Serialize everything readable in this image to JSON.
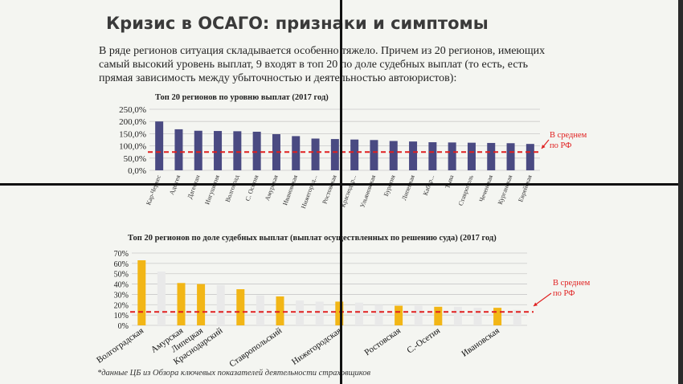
{
  "title": "Кризис в ОСАГО: признаки и симптомы",
  "intro": "В ряде регионов ситуация складывается особенно тяжело. Причем из 20 регионов, имеющих самый высокий уровень выплат, 9 входят в топ 20 по доле судебных выплат (то есть, есть прямая зависимость между убыточностью и деятельностью автоюристов):",
  "footnote": "*данные ЦБ из Обзора ключевых показателей деятельности страховщиков",
  "colors": {
    "bar1": "#4a4a82",
    "bar2": "#f2b616",
    "avg": "#e02020",
    "ghost": "#e9e9e9"
  },
  "chart_data": [
    {
      "type": "bar",
      "title": "Топ 20 регионов по уровню выплат (2017 год)",
      "categories": [
        "Кар-Черкес",
        "Адыгея",
        "Дагестан",
        "Ингушетия",
        "Волгоград",
        "С. Осетия",
        "Амурская",
        "Ивановская",
        "Нижегород...",
        "Ростовская",
        "Краснодар...",
        "Ульяновская",
        "Бурятия",
        "Липецкая",
        "Кабар...",
        "Тыва",
        "Ставрополь",
        "Чеченская",
        "Курганская",
        "Еврейская"
      ],
      "values": [
        200,
        168,
        162,
        161,
        160,
        158,
        148,
        140,
        130,
        128,
        126,
        124,
        120,
        118,
        115,
        114,
        113,
        112,
        111,
        108
      ],
      "yticks": [
        "0,0%",
        "50,0%",
        "100,0%",
        "150,0%",
        "200,0%",
        "250,0%"
      ],
      "ylim": [
        0,
        250
      ],
      "average": 75,
      "average_label": "В среднем по РФ"
    },
    {
      "type": "bar",
      "title": "Топ 20 регионов по доле судебных выплат (выплат осуществленных по решению суда) (2017 год)",
      "categories": [
        "Волгоградская",
        "",
        "Амурская",
        "Липецкая",
        "Краснодарский",
        "",
        "",
        "Ставропольский",
        "",
        "",
        "Нижегородская",
        "",
        "",
        "Ростовская",
        "",
        "С.-Осетия",
        "",
        "",
        "Ивановская",
        ""
      ],
      "values": [
        63,
        52,
        41,
        40,
        39,
        35,
        29,
        28,
        24,
        23,
        23,
        22,
        20,
        19,
        19,
        18,
        18,
        17,
        17,
        15
      ],
      "highlight": [
        true,
        false,
        true,
        true,
        false,
        true,
        false,
        true,
        false,
        false,
        true,
        false,
        false,
        true,
        false,
        true,
        false,
        false,
        true,
        false
      ],
      "yticks": [
        "0%",
        "10%",
        "20%",
        "30%",
        "40%",
        "50%",
        "60%",
        "70%"
      ],
      "ylim": [
        0,
        70
      ],
      "average": 13,
      "average_label": "В среднем по РФ"
    }
  ]
}
